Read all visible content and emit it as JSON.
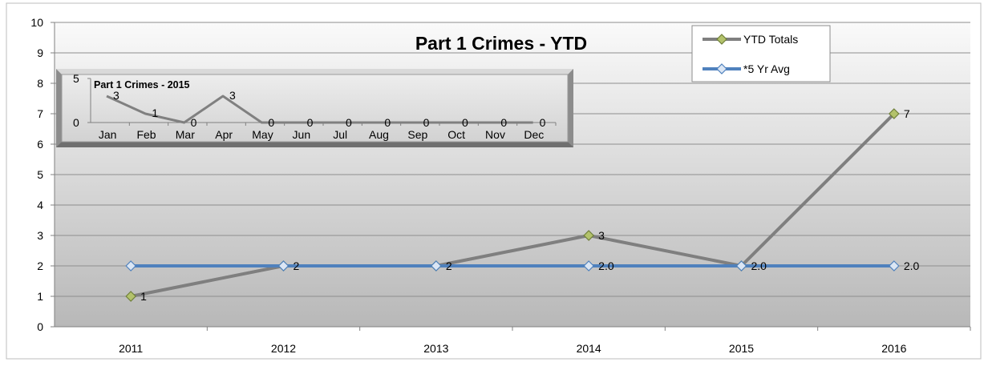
{
  "chart_data": [
    {
      "type": "line",
      "title": "Part 1 Crimes - YTD",
      "xlabel": "",
      "ylabel": "",
      "x": [
        "2011",
        "2012",
        "2013",
        "2014",
        "2015",
        "2016"
      ],
      "ylim": [
        0,
        10
      ],
      "yticks": [
        "0",
        "1",
        "2",
        "3",
        "4",
        "5",
        "6",
        "7",
        "8",
        "9",
        "10"
      ],
      "grid": true,
      "legend_position": "top-right",
      "series": [
        {
          "name": "YTD Totals",
          "color": "#7f7f7f",
          "marker_fill": "#b3c26b",
          "values": [
            1,
            2,
            2,
            3,
            2,
            7
          ],
          "labels": [
            "1",
            "2",
            "2",
            "3",
            "",
            "7"
          ]
        },
        {
          "name": "*5 Yr Avg",
          "color": "#4f81bd",
          "marker_fill": "#dbe6f4",
          "values": [
            2,
            2,
            2,
            2,
            2,
            2
          ],
          "labels": [
            "",
            "",
            "",
            "2.0",
            "2.0",
            "2.0"
          ]
        }
      ]
    },
    {
      "type": "line",
      "title": "Part 1 Crimes - 2015",
      "xlabel": "",
      "ylabel": "",
      "x": [
        "Jan",
        "Feb",
        "Mar",
        "Apr",
        "May",
        "Jun",
        "Jul",
        "Aug",
        "Sep",
        "Oct",
        "Nov",
        "Dec"
      ],
      "ylim": [
        0,
        5
      ],
      "yticks": [
        "0",
        "5"
      ],
      "series": [
        {
          "color": "#808080",
          "values": [
            3,
            1,
            0,
            3,
            0,
            0,
            0,
            0,
            0,
            0,
            0,
            0
          ],
          "labels": [
            "3",
            "1",
            "0",
            "3",
            "0",
            "0",
            "0",
            "0",
            "0",
            "0",
            "0",
            "0"
          ]
        }
      ]
    }
  ]
}
